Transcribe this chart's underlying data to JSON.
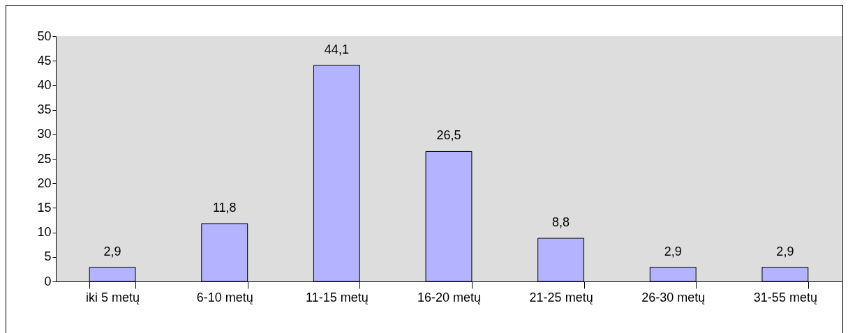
{
  "chart_data": {
    "type": "bar",
    "categories": [
      "iki 5 metų",
      "6-10 metų",
      "11-15 metų",
      "16-20 metų",
      "21-25 metų",
      "26-30 metų",
      "31-55 metų"
    ],
    "values": [
      2.9,
      11.8,
      44.1,
      26.5,
      8.8,
      2.9,
      2.9
    ],
    "value_labels": [
      "2,9",
      "11,8",
      "44,1",
      "26,5",
      "8,8",
      "2,9",
      "2,9"
    ],
    "color": "#b3b3ff",
    "ylim": [
      0,
      50
    ],
    "yticks": [
      0,
      5,
      10,
      15,
      20,
      25,
      30,
      35,
      40,
      45,
      50
    ],
    "grid": false
  }
}
